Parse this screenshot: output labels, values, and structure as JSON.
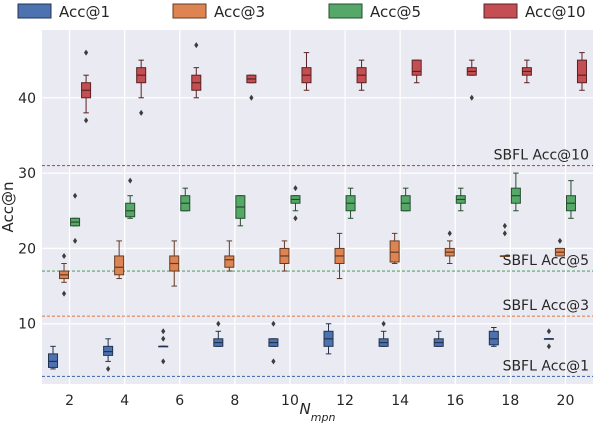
{
  "chart_data": {
    "type": "box",
    "xlabel": "N",
    "xlabel_sub": "mpn",
    "ylabel": "Acc@n",
    "categories": [
      "2",
      "4",
      "6",
      "8",
      "10",
      "12",
      "14",
      "16",
      "18",
      "20"
    ],
    "ylim": [
      2,
      49
    ],
    "yticks": [
      10,
      20,
      30,
      40
    ],
    "grid": true,
    "legend_placement": "top",
    "series": [
      {
        "name": "Acc@1",
        "color": "#4c72b0",
        "boxes": [
          {
            "whislo": 4,
            "q1": 4.2,
            "med": 5,
            "q3": 6,
            "whishi": 7,
            "fliers": []
          },
          {
            "whislo": 5,
            "q1": 5.8,
            "med": 6.3,
            "q3": 7,
            "whishi": 8,
            "fliers": [
              4
            ]
          },
          {
            "whislo": 7,
            "q1": 7,
            "med": 7,
            "q3": 7,
            "whishi": 7,
            "fliers": [
              5,
              8,
              9
            ]
          },
          {
            "whislo": 7,
            "q1": 7,
            "med": 7.5,
            "q3": 8,
            "whishi": 9,
            "fliers": [
              10
            ]
          },
          {
            "whislo": 7,
            "q1": 7,
            "med": 7.5,
            "q3": 8,
            "whishi": 8,
            "fliers": [
              5,
              10
            ]
          },
          {
            "whislo": 6,
            "q1": 7,
            "med": 8,
            "q3": 9,
            "whishi": 10,
            "fliers": []
          },
          {
            "whislo": 7,
            "q1": 7,
            "med": 7.5,
            "q3": 8,
            "whishi": 9,
            "fliers": [
              10
            ]
          },
          {
            "whislo": 7,
            "q1": 7,
            "med": 7.5,
            "q3": 8,
            "whishi": 9,
            "fliers": []
          },
          {
            "whislo": 7,
            "q1": 7.2,
            "med": 8,
            "q3": 9,
            "whishi": 9.5,
            "fliers": []
          },
          {
            "whislo": 8,
            "q1": 8,
            "med": 8,
            "q3": 8,
            "whishi": 8,
            "fliers": [
              7,
              9
            ]
          }
        ]
      },
      {
        "name": "Acc@3",
        "color": "#dd8452",
        "boxes": [
          {
            "whislo": 15.5,
            "q1": 16,
            "med": 16.5,
            "q3": 17,
            "whishi": 18,
            "fliers": [
              14,
              19
            ]
          },
          {
            "whislo": 16,
            "q1": 16.5,
            "med": 17.5,
            "q3": 19,
            "whishi": 21,
            "fliers": []
          },
          {
            "whislo": 15,
            "q1": 17,
            "med": 18,
            "q3": 19,
            "whishi": 21,
            "fliers": []
          },
          {
            "whislo": 17,
            "q1": 17.5,
            "med": 18.5,
            "q3": 19,
            "whishi": 21,
            "fliers": []
          },
          {
            "whislo": 17,
            "q1": 18,
            "med": 19,
            "q3": 20,
            "whishi": 21,
            "fliers": []
          },
          {
            "whislo": 16,
            "q1": 18,
            "med": 19,
            "q3": 20,
            "whishi": 22,
            "fliers": []
          },
          {
            "whislo": 18,
            "q1": 18.2,
            "med": 19.5,
            "q3": 21,
            "whishi": 22,
            "fliers": []
          },
          {
            "whislo": 18,
            "q1": 19,
            "med": 19.5,
            "q3": 20,
            "whishi": 21,
            "fliers": [
              22
            ]
          },
          {
            "whislo": 19,
            "q1": 19,
            "med": 19,
            "q3": 19,
            "whishi": 19,
            "fliers": [
              22,
              23
            ]
          },
          {
            "whislo": 19,
            "q1": 19,
            "med": 19.5,
            "q3": 20,
            "whishi": 20,
            "fliers": [
              21
            ]
          }
        ]
      },
      {
        "name": "Acc@5",
        "color": "#55a868",
        "boxes": [
          {
            "whislo": 23,
            "q1": 23,
            "med": 23.5,
            "q3": 24,
            "whishi": 24,
            "fliers": [
              21,
              27
            ]
          },
          {
            "whislo": 24,
            "q1": 24.2,
            "med": 25,
            "q3": 26,
            "whishi": 27,
            "fliers": [
              29
            ]
          },
          {
            "whislo": 25,
            "q1": 25,
            "med": 26,
            "q3": 27,
            "whishi": 28,
            "fliers": []
          },
          {
            "whislo": 23,
            "q1": 24,
            "med": 25.5,
            "q3": 27,
            "whishi": 27,
            "fliers": []
          },
          {
            "whislo": 25,
            "q1": 26,
            "med": 26.5,
            "q3": 27,
            "whishi": 27,
            "fliers": [
              24,
              28
            ]
          },
          {
            "whislo": 24,
            "q1": 25,
            "med": 26,
            "q3": 27,
            "whishi": 28,
            "fliers": []
          },
          {
            "whislo": 25,
            "q1": 25,
            "med": 26,
            "q3": 27,
            "whishi": 28,
            "fliers": []
          },
          {
            "whislo": 25,
            "q1": 26,
            "med": 26.5,
            "q3": 27,
            "whishi": 28,
            "fliers": []
          },
          {
            "whislo": 25,
            "q1": 26,
            "med": 27,
            "q3": 28,
            "whishi": 30,
            "fliers": []
          },
          {
            "whislo": 24,
            "q1": 25,
            "med": 26,
            "q3": 27,
            "whishi": 29,
            "fliers": []
          }
        ]
      },
      {
        "name": "Acc@10",
        "color": "#c44e52",
        "boxes": [
          {
            "whislo": 38,
            "q1": 40,
            "med": 41,
            "q3": 42,
            "whishi": 43,
            "fliers": [
              37,
              46
            ]
          },
          {
            "whislo": 40,
            "q1": 42,
            "med": 43,
            "q3": 44,
            "whishi": 45,
            "fliers": [
              38
            ]
          },
          {
            "whislo": 40,
            "q1": 41,
            "med": 42,
            "q3": 43,
            "whishi": 44,
            "fliers": [
              47
            ]
          },
          {
            "whislo": 42,
            "q1": 42,
            "med": 42.5,
            "q3": 43,
            "whishi": 43,
            "fliers": [
              40
            ]
          },
          {
            "whislo": 41,
            "q1": 42,
            "med": 43,
            "q3": 44,
            "whishi": 46,
            "fliers": []
          },
          {
            "whislo": 41,
            "q1": 42,
            "med": 43,
            "q3": 44,
            "whishi": 45,
            "fliers": []
          },
          {
            "whislo": 42,
            "q1": 43,
            "med": 43.5,
            "q3": 45,
            "whishi": 45,
            "fliers": []
          },
          {
            "whislo": 43,
            "q1": 43,
            "med": 43.5,
            "q3": 44,
            "whishi": 45,
            "fliers": [
              40
            ]
          },
          {
            "whislo": 42,
            "q1": 43,
            "med": 43.5,
            "q3": 44,
            "whishi": 45,
            "fliers": []
          },
          {
            "whislo": 41,
            "q1": 42,
            "med": 43,
            "q3": 45,
            "whishi": 46,
            "fliers": []
          }
        ]
      }
    ],
    "reference_lines": [
      {
        "label": "SBFL Acc@10",
        "value": 31,
        "color": "#c44e52"
      },
      {
        "label": "SBFL Acc@5",
        "value": 17,
        "color": "#55a868"
      },
      {
        "label": "SBFL Acc@3",
        "value": 11,
        "color": "#dd8452"
      },
      {
        "label": "SBFL Acc@1",
        "value": 3,
        "color": "#4c72b0"
      }
    ]
  }
}
